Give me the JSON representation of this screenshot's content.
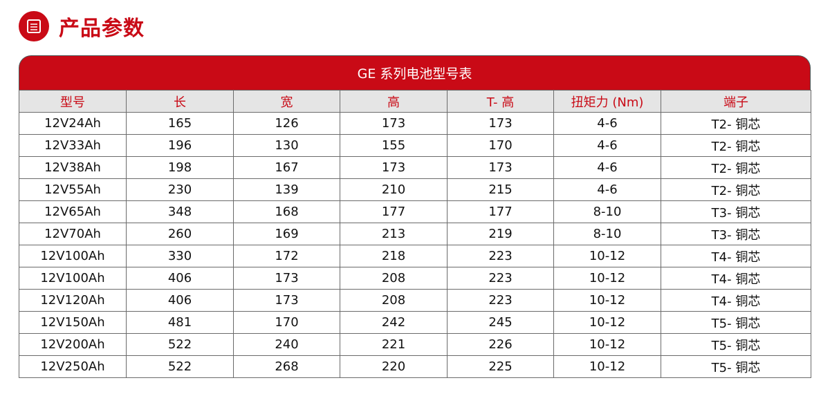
{
  "section_title": "产品参数",
  "table": {
    "caption": "GE 系列电池型号表",
    "headers": [
      "型号",
      "长",
      "宽",
      "高",
      "T- 高",
      "扭矩力 (Nm)",
      "端子"
    ],
    "rows": [
      [
        "12V24Ah",
        "165",
        "126",
        "173",
        "173",
        "4-6",
        "T2- 铜芯"
      ],
      [
        "12V33Ah",
        "196",
        "130",
        "155",
        "170",
        "4-6",
        "T2- 铜芯"
      ],
      [
        "12V38Ah",
        "198",
        "167",
        "173",
        "173",
        "4-6",
        "T2- 铜芯"
      ],
      [
        "12V55Ah",
        "230",
        "139",
        "210",
        "215",
        "4-6",
        "T2- 铜芯"
      ],
      [
        "12V65Ah",
        "348",
        "168",
        "177",
        "177",
        "8-10",
        "T3- 铜芯"
      ],
      [
        "12V70Ah",
        "260",
        "169",
        "213",
        "219",
        "8-10",
        "T3- 铜芯"
      ],
      [
        "12V100Ah",
        "330",
        "172",
        "218",
        "223",
        "10-12",
        "T4- 铜芯"
      ],
      [
        "12V100Ah",
        "406",
        "173",
        "208",
        "223",
        "10-12",
        "T4- 铜芯"
      ],
      [
        "12V120Ah",
        "406",
        "173",
        "208",
        "223",
        "10-12",
        "T4- 铜芯"
      ],
      [
        "12V150Ah",
        "481",
        "170",
        "242",
        "245",
        "10-12",
        "T5- 铜芯"
      ],
      [
        "12V200Ah",
        "522",
        "240",
        "221",
        "226",
        "10-12",
        "T5- 铜芯"
      ],
      [
        "12V250Ah",
        "522",
        "268",
        "220",
        "225",
        "10-12",
        "T5- 铜芯"
      ]
    ]
  },
  "colors": {
    "accent": "#c90a16",
    "header_bg": "#e5e5e5"
  }
}
